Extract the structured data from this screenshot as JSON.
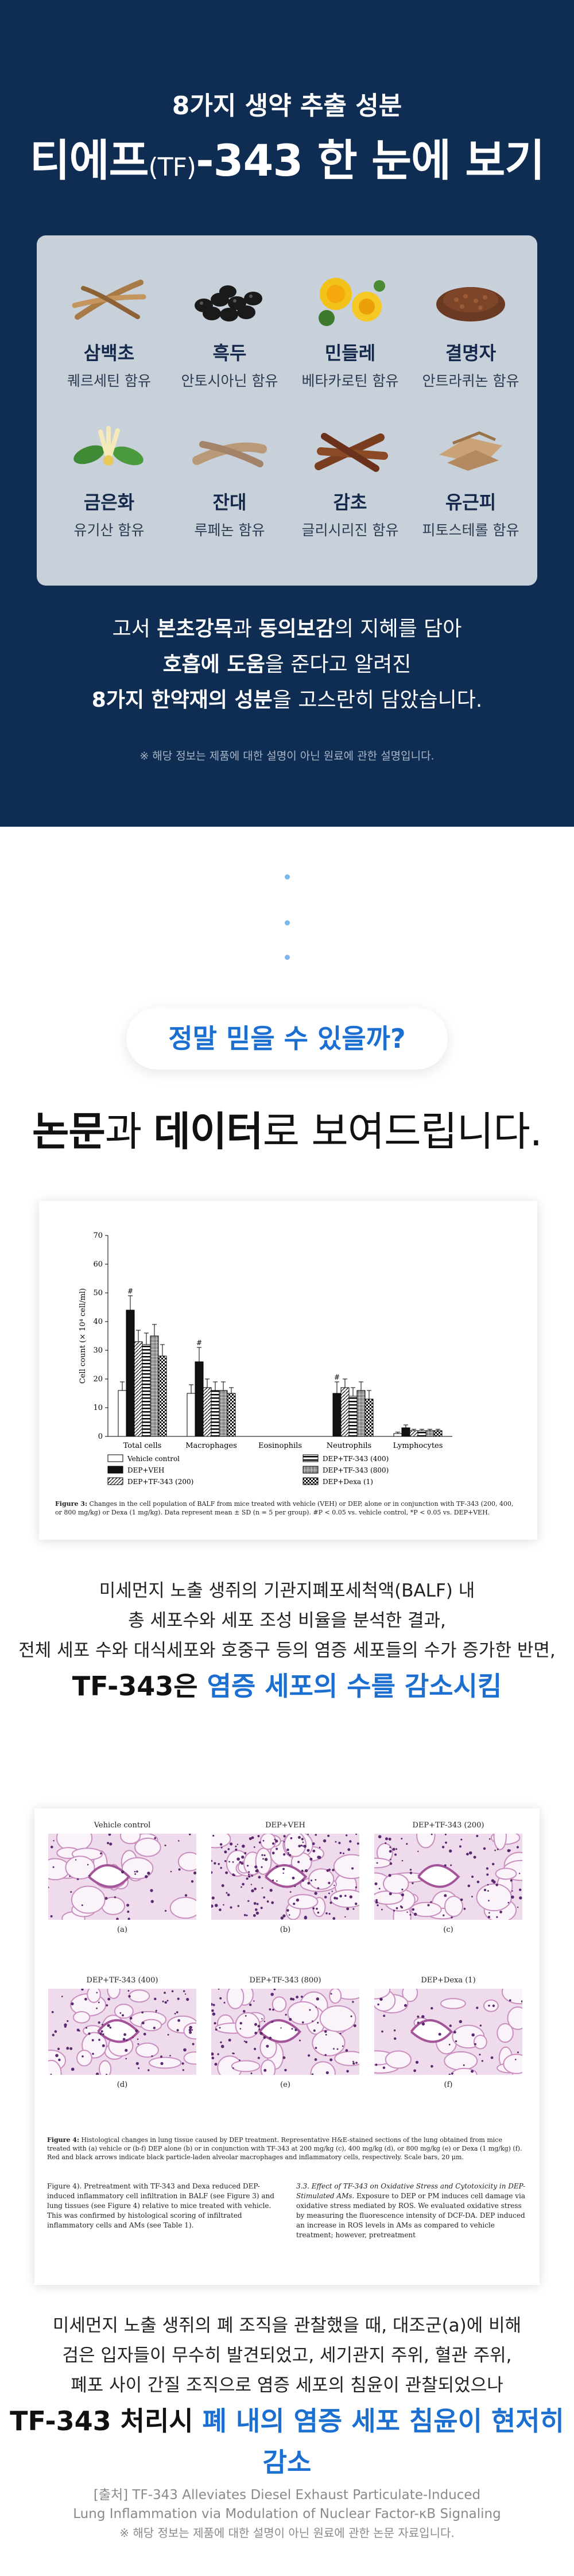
{
  "hero": {
    "kicker": "8가지 생약 추출 성분",
    "title_pre": "티에프",
    "title_paren": "(TF)",
    "title_post": "-343 한 눈에 보기",
    "ingredients": [
      {
        "name": "삼백초",
        "desc": "퀘르세틴 함유",
        "icon": "saururus-root-icon"
      },
      {
        "name": "흑두",
        "desc": "안토시아닌 함유",
        "icon": "black-bean-icon"
      },
      {
        "name": "민들레",
        "desc": "베타카로틴 함유",
        "icon": "dandelion-flower-icon"
      },
      {
        "name": "결명자",
        "desc": "안트라퀴논 함유",
        "icon": "cassia-seed-icon"
      },
      {
        "name": "금은화",
        "desc": "유기산 함유",
        "icon": "honeysuckle-flower-icon"
      },
      {
        "name": "잔대",
        "desc": "루페논 함유",
        "icon": "adenophora-root-icon"
      },
      {
        "name": "감초",
        "desc": "글리시리진 함유",
        "icon": "licorice-root-icon"
      },
      {
        "name": "유근피",
        "desc": "피토스테롤 함유",
        "icon": "elm-bark-icon"
      }
    ],
    "desc_l1_pre": "고서 ",
    "desc_l1_b1": "본초강목",
    "desc_l1_mid": "과 ",
    "desc_l1_b2": "동의보감",
    "desc_l1_post": "의 지혜를 담아",
    "desc_l2_b": "호흡에 도움",
    "desc_l2_post": "을 준다고 알려진",
    "desc_l3_b": "8가지 한약재의 성분",
    "desc_l3_post": "을 고스란히 담았습니다.",
    "note": "※ 해당 정보는 제품에 대한 설명이 아닌 원료에 관한 설명입니다."
  },
  "headline": {
    "pill": "정말 믿을 수 있을까?",
    "b1": "논문",
    "mid": "과 ",
    "b2": "데이터",
    "post": "로 보여드립니다."
  },
  "chart_data": {
    "type": "bar",
    "ylabel": "Cell count (× 10⁴ cell/ml)",
    "ylim": [
      0,
      70
    ],
    "yticks": [
      0,
      10,
      20,
      30,
      40,
      50,
      60,
      70
    ],
    "categories": [
      "Total cells",
      "Macrophages",
      "Eosinophils",
      "Neutrophils",
      "Lymphocytes"
    ],
    "series": [
      {
        "name": "Vehicle control",
        "values": [
          16,
          15,
          0,
          0,
          1
        ],
        "errors": [
          3,
          3,
          0,
          0,
          0.5
        ],
        "pattern": "white"
      },
      {
        "name": "DEP+VEH",
        "values": [
          44,
          26,
          0,
          15,
          3
        ],
        "errors": [
          5,
          5,
          0,
          4,
          1
        ],
        "pattern": "black",
        "marks": [
          "#",
          "#",
          "",
          "#",
          ""
        ]
      },
      {
        "name": "DEP+TF-343 (200)",
        "values": [
          33,
          17,
          0,
          17,
          2
        ],
        "errors": [
          4,
          3,
          0,
          3,
          0.5
        ],
        "pattern": "diag"
      },
      {
        "name": "DEP+TF-343 (400)",
        "values": [
          32,
          16,
          0,
          14,
          2
        ],
        "errors": [
          4,
          3,
          0,
          3,
          0.5
        ],
        "pattern": "hstripe"
      },
      {
        "name": "DEP+TF-343 (800)",
        "values": [
          35,
          16,
          0,
          16,
          2
        ],
        "errors": [
          4,
          3,
          0,
          3,
          0.5
        ],
        "pattern": "grid"
      },
      {
        "name": "DEP+Dexa (1)",
        "values": [
          28,
          15,
          0,
          13,
          2
        ],
        "errors": [
          4,
          2,
          0,
          3,
          0.5
        ],
        "pattern": "check"
      }
    ],
    "legend": "bottom",
    "caption_lead": "Figure 3:",
    "caption": "Changes in the cell population of BALF from mice treated with vehicle (VEH) or DEP, alone or in conjunction with TF-343 (200, 400, or 800 mg/kg) or Dexa (1 mg/kg). Data represent mean ± SD (n = 5 per group). #P < 0.05 vs. vehicle control, *P < 0.05 vs. DEP+VEH."
  },
  "desc1": {
    "l1": "미세먼지 노출 생쥐의 기관지폐포세척액(BALF) 내",
    "l2": "총 세포수와 세포 조성 비율을 분석한 결과,",
    "l3": "전체 세포 수와 대식세포와 호중구 등의 염증 세포들의 수가 증가한 반면,",
    "s_pre": "TF-343은 ",
    "s_blue": "염증 세포의 수를 감소시킴"
  },
  "histology": {
    "panels": [
      {
        "title": "Vehicle control",
        "letter": "(a)",
        "density": "low"
      },
      {
        "title": "DEP+VEH",
        "letter": "(b)",
        "density": "high"
      },
      {
        "title": "DEP+TF-343 (200)",
        "letter": "(c)",
        "density": "med"
      },
      {
        "title": "DEP+TF-343 (400)",
        "letter": "(d)",
        "density": "med"
      },
      {
        "title": "DEP+TF-343 (800)",
        "letter": "(e)",
        "density": "med"
      },
      {
        "title": "DEP+Dexa (1)",
        "letter": "(f)",
        "density": "low"
      }
    ],
    "caption_lead": "Figure 4:",
    "caption": "Histological changes in lung tissue caused by DEP treatment. Representative H&E-stained sections of the lung obtained from mice treated with (a) vehicle or (b-f) DEP alone (b) or in conjunction with TF-343 at 200 mg/kg (c), 400 mg/kg (d), or 800 mg/kg (e) or Dexa (1 mg/kg) (f). Red and black arrows indicate black particle-laden alveolar macrophages and inflammatory cells, respectively. Scale bars, 20 μm.",
    "col1": "Figure 4). Pretreatment with TF-343 and Dexa reduced DEP-induced inflammatory cell infiltration in BALF (see Figure 3) and lung tissues (see Figure 4) relative to mice treated with vehicle. This was confirmed by histological scoring of infiltrated inflammatory cells and AMs (see Table 1).",
    "col2_title": "3.3. Effect of TF-343 on Oxidative Stress and Cytotoxicity in DEP-Stimulated AMs.",
    "col2": "Exposure to DEP or PM induces cell damage via oxidative stress mediated by ROS. We evaluated oxidative stress by measuring the fluorescence intensity of DCF-DA. DEP induced an increase in ROS levels in AMs as compared to vehicle treatment; however, pretreatment"
  },
  "desc2": {
    "l1": "미세먼지 노출 생쥐의 폐 조직을 관찰했을 때, 대조군(a)에 비해",
    "l2": "검은 입자들이 무수히 발견되었고, 세기관지 주위, 혈관 주위,",
    "l3": "폐포 사이 간질 조직으로 염증 세포의 침윤이 관찰되었으나",
    "s_pre": "TF-343 처리시 ",
    "s_blue": "폐 내의 염증 세포 침윤이 현저히 감소"
  },
  "source": {
    "l1": "[출처] TF-343 Alleviates Diesel Exhaust Particulate-Induced",
    "l2": "Lung Inflammation via Modulation of Nuclear Factor-κB Signaling",
    "l3": "※ 해당 정보는 제품에 대한 설명이 아닌 원료에 관한 논문 자료입니다."
  },
  "colors": {
    "navy": "#0f2d52",
    "accent_blue": "#1b6fd1",
    "box_grey": "#c8d0da"
  }
}
